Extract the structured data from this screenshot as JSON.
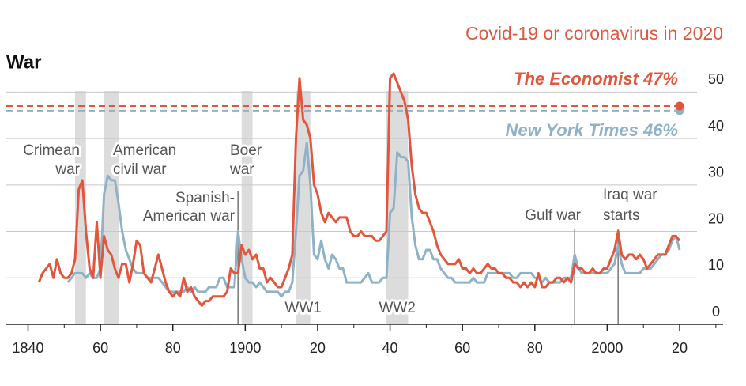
{
  "chart_data": {
    "type": "line",
    "title": "War",
    "x": [
      1843,
      1844,
      1845,
      1846,
      1847,
      1848,
      1849,
      1850,
      1851,
      1852,
      1853,
      1854,
      1855,
      1856,
      1857,
      1858,
      1859,
      1860,
      1861,
      1862,
      1863,
      1864,
      1865,
      1866,
      1867,
      1868,
      1869,
      1870,
      1871,
      1872,
      1873,
      1874,
      1875,
      1876,
      1877,
      1878,
      1879,
      1880,
      1881,
      1882,
      1883,
      1884,
      1885,
      1886,
      1887,
      1888,
      1889,
      1890,
      1891,
      1892,
      1893,
      1894,
      1895,
      1896,
      1897,
      1898,
      1899,
      1900,
      1901,
      1902,
      1903,
      1904,
      1905,
      1906,
      1907,
      1908,
      1909,
      1910,
      1911,
      1912,
      1913,
      1914,
      1915,
      1916,
      1917,
      1918,
      1919,
      1920,
      1921,
      1922,
      1923,
      1924,
      1925,
      1926,
      1927,
      1928,
      1929,
      1930,
      1931,
      1932,
      1933,
      1934,
      1935,
      1936,
      1937,
      1938,
      1939,
      1940,
      1941,
      1942,
      1943,
      1944,
      1945,
      1946,
      1947,
      1948,
      1949,
      1950,
      1951,
      1952,
      1953,
      1954,
      1955,
      1956,
      1957,
      1958,
      1959,
      1960,
      1961,
      1962,
      1963,
      1964,
      1965,
      1966,
      1967,
      1968,
      1969,
      1970,
      1971,
      1972,
      1973,
      1974,
      1975,
      1976,
      1977,
      1978,
      1979,
      1980,
      1981,
      1982,
      1983,
      1984,
      1985,
      1986,
      1987,
      1988,
      1989,
      1990,
      1991,
      1992,
      1993,
      1994,
      1995,
      1996,
      1997,
      1998,
      1999,
      2000,
      2001,
      2002,
      2003,
      2004,
      2005,
      2006,
      2007,
      2008,
      2009,
      2010,
      2011,
      2012,
      2013,
      2014,
      2015,
      2016,
      2017,
      2018,
      2019,
      2020
    ],
    "series": [
      {
        "name": "The Economist",
        "color": "#e3563b",
        "values": [
          9,
          11,
          12,
          13,
          10,
          14,
          11,
          10,
          10,
          11,
          14,
          29,
          31,
          20,
          12,
          10,
          22,
          10,
          19,
          16,
          15,
          12,
          10,
          13,
          13,
          9,
          13,
          18,
          17,
          11,
          10,
          9,
          12,
          15,
          12,
          9,
          7,
          6,
          7,
          6,
          10,
          7,
          8,
          6,
          5,
          4,
          5,
          5,
          6,
          6,
          6,
          6,
          7,
          12,
          11,
          11,
          17,
          15,
          16,
          14,
          15,
          12,
          12,
          9,
          10,
          9,
          8,
          8,
          10,
          12,
          15,
          40,
          53,
          44,
          43,
          40,
          30,
          28,
          24,
          22,
          24,
          23,
          22,
          23,
          23,
          23,
          20,
          19,
          19,
          20,
          19,
          19,
          19,
          18,
          18,
          19,
          20,
          53,
          54,
          52,
          50,
          48,
          44,
          34,
          28,
          25,
          24,
          24,
          22,
          20,
          17,
          15,
          14,
          13,
          13,
          13,
          14,
          12,
          12,
          11,
          12,
          11,
          11,
          12,
          13,
          12,
          12,
          11,
          11,
          10,
          10,
          9,
          9,
          8,
          9,
          8,
          9,
          8,
          11,
          8,
          8,
          9,
          9,
          10,
          10,
          9,
          10,
          9,
          13,
          12,
          12,
          11,
          11,
          12,
          11,
          11,
          12,
          12,
          14,
          16,
          20,
          15,
          14,
          15,
          15,
          14,
          15,
          14,
          12,
          13,
          14,
          15,
          15,
          15,
          17,
          19,
          19,
          18
        ]
      },
      {
        "name": "New York Times",
        "color": "#8fb2c6",
        "values": [
          null,
          null,
          null,
          null,
          null,
          null,
          null,
          null,
          9,
          10,
          11,
          11,
          11,
          10,
          11,
          10,
          10,
          12,
          28,
          32,
          31,
          31,
          26,
          20,
          16,
          14,
          12,
          11,
          11,
          11,
          10,
          10,
          10,
          10,
          9,
          8,
          7,
          7,
          7,
          7,
          7,
          8,
          7,
          8,
          7,
          7,
          7,
          8,
          8,
          8,
          10,
          10,
          8,
          8,
          8,
          20,
          14,
          10,
          9,
          9,
          8,
          9,
          8,
          7,
          7,
          7,
          7,
          6,
          7,
          7,
          9,
          20,
          32,
          33,
          39,
          30,
          15,
          14,
          18,
          14,
          12,
          15,
          14,
          12,
          12,
          9,
          9,
          9,
          9,
          9,
          10,
          11,
          9,
          9,
          9,
          10,
          10,
          24,
          25,
          37,
          36,
          36,
          35,
          23,
          17,
          14,
          14,
          16,
          16,
          14,
          14,
          12,
          11,
          10,
          10,
          9,
          9,
          9,
          9,
          9,
          10,
          9,
          9,
          9,
          11,
          11,
          11,
          11,
          11,
          11,
          11,
          10,
          10,
          11,
          11,
          11,
          11,
          10,
          10,
          9,
          10,
          9,
          9,
          9,
          9,
          10,
          10,
          10,
          15,
          12,
          11,
          11,
          11,
          11,
          11,
          11,
          11,
          11,
          12,
          13,
          17,
          13,
          11,
          11,
          11,
          11,
          11,
          12,
          12,
          12,
          13,
          14,
          15,
          15,
          16,
          18,
          19,
          16
        ]
      }
    ],
    "reference": {
      "title": "Covid-19 or coronavirus in 2020",
      "x": 2020,
      "lines": [
        {
          "label": "The Economist 47%",
          "value": 47,
          "color": "#e3563b"
        },
        {
          "label": "New York Times 46%",
          "value": 46,
          "color": "#8fb2c6"
        }
      ]
    },
    "periods": [
      {
        "label": [
          "Crimean",
          "war"
        ],
        "start": 1853,
        "end": 1856
      },
      {
        "label": [
          "American",
          "civil war"
        ],
        "start": 1861,
        "end": 1865
      },
      {
        "label": [
          "Boer",
          "war"
        ],
        "start": 1899,
        "end": 1902
      },
      {
        "label": [
          "WW1"
        ],
        "start": 1914,
        "end": 1918
      },
      {
        "label": [
          "WW2"
        ],
        "start": 1939,
        "end": 1945
      }
    ],
    "events": [
      {
        "label": [
          "Spanish-",
          "American war"
        ],
        "x": 1898
      },
      {
        "label": [
          "Gulf war"
        ],
        "x": 1991
      },
      {
        "label": [
          "Iraq war",
          "starts"
        ],
        "x": 2003
      }
    ],
    "xlim": [
      1834,
      2032
    ],
    "ylim": [
      0,
      55
    ],
    "xticks": [
      1840,
      {
        "value": 1860,
        "label": "60"
      },
      {
        "value": 1880,
        "label": "80"
      },
      1900,
      {
        "value": 1920,
        "label": "20"
      },
      {
        "value": 1940,
        "label": "40"
      },
      {
        "value": 1960,
        "label": "60"
      },
      {
        "value": 1980,
        "label": "80"
      },
      2000,
      {
        "value": 2020,
        "label": "20"
      }
    ],
    "yticks": [
      0,
      10,
      20,
      30,
      40,
      50
    ],
    "grid": true
  }
}
